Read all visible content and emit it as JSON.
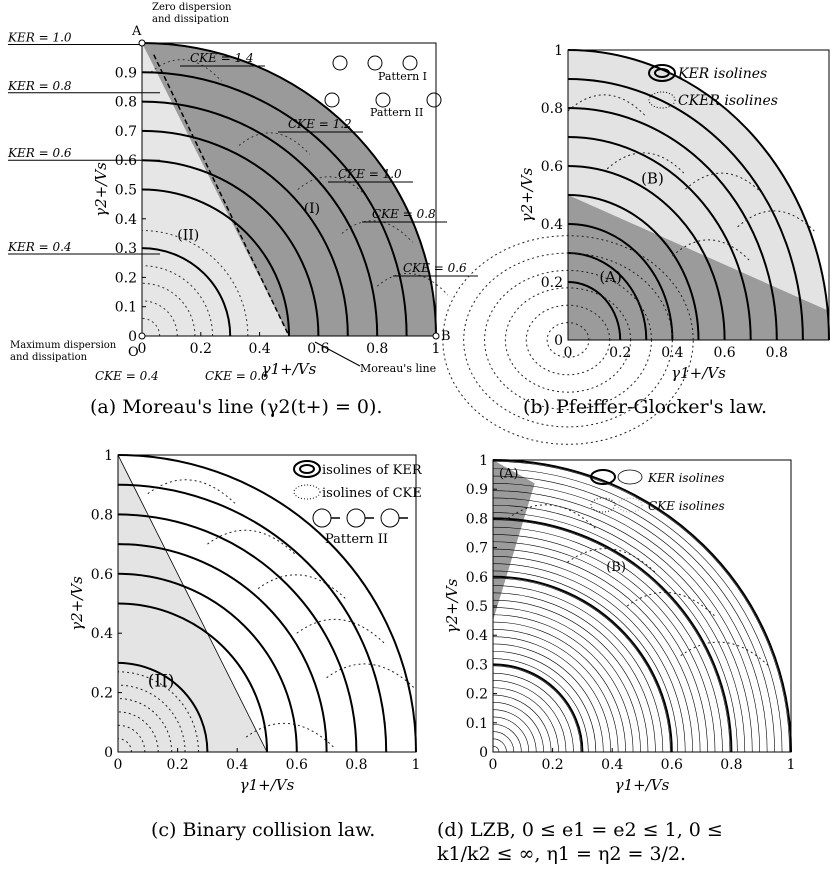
{
  "chart_data": [
    {
      "id": "a",
      "type": "contour",
      "caption": "(a) Moreau's line (γ2(t+) = 0).",
      "xlabel": "γ1+/Vs",
      "ylabel": "γ2+/Vs",
      "xlim": [
        0,
        1
      ],
      "ylim": [
        0,
        1
      ],
      "xticks": [
        "0",
        "0.2",
        "0.4",
        "0.6",
        "0.8",
        "1"
      ],
      "yticks": [
        "0",
        "0.1",
        "0.2",
        "0.3",
        "0.4",
        "0.5",
        "0.6",
        "0.7",
        "0.8",
        "0.9"
      ],
      "ker_isolines": [
        0.4,
        0.6,
        0.8,
        1.0
      ],
      "ker_labels": [
        "KER = 1.0",
        "KER = 0.8",
        "KER = 0.6",
        "KER = 0.4"
      ],
      "cke_labels": [
        "CKE = 1.4",
        "CKE = 1.2",
        "CKE = 1.0",
        "CKE = 0.8",
        "CKE = 0.6",
        "CKE = 0.4",
        "CKE = 0.6"
      ],
      "regions": [
        "(I)",
        "(II)"
      ],
      "boundary": {
        "from": [
          0.06,
          0.93
        ],
        "to": [
          0.5,
          0.0
        ],
        "label": "Moreau's line"
      },
      "point_a": {
        "label": "A",
        "x": 0,
        "y": 1,
        "note": "Zero dispersion and dissipation"
      },
      "point_o": {
        "label": "O",
        "x": 0,
        "y": 0,
        "note": "Maximum dispersion and dissipation"
      },
      "point_b": {
        "label": "B",
        "x": 1,
        "y": 0
      },
      "legend": {
        "pattern1": "Pattern I",
        "pattern2": "Pattern II"
      }
    },
    {
      "id": "b",
      "type": "contour",
      "caption": "(b) Pfeiffer-Glocker's law.",
      "xlabel": "γ1+/Vs",
      "ylabel": "γ2+/Vs",
      "xlim": [
        0,
        1
      ],
      "ylim": [
        0,
        1
      ],
      "xticks": [
        "0",
        "0.2",
        "0.4",
        "0.6",
        "0.8"
      ],
      "yticks": [
        "0",
        "0.2",
        "0.4",
        "0.6",
        "0.8",
        "1"
      ],
      "ker_isolines": [
        0.2,
        0.3,
        0.4,
        0.5,
        0.6,
        0.7,
        0.8,
        0.9,
        1.0
      ],
      "regions": [
        "(A)",
        "(B)"
      ],
      "boundary": {
        "from": [
          0,
          0.5
        ],
        "to": [
          1,
          0.1
        ]
      },
      "legend": [
        "KER isolines",
        "CKER isolines"
      ]
    },
    {
      "id": "c",
      "type": "contour",
      "caption": "(c) Binary collision law.",
      "xlabel": "γ1+/Vs",
      "ylabel": "γ2+/Vs",
      "xlim": [
        0,
        1
      ],
      "ylim": [
        0,
        1
      ],
      "xticks": [
        "0",
        "0.2",
        "0.4",
        "0.6",
        "0.8",
        "1"
      ],
      "yticks": [
        "0",
        "0.2",
        "0.4",
        "0.6",
        "0.8",
        "1"
      ],
      "ker_isolines": [
        0.3,
        0.5,
        0.6,
        0.7,
        0.8,
        0.9,
        1.0
      ],
      "regions": [
        "(II)"
      ],
      "boundary": {
        "from": [
          0,
          1
        ],
        "to": [
          0.5,
          0
        ]
      },
      "legend": [
        "isolines of KER",
        "isolines of CKE",
        "Pattern II"
      ]
    },
    {
      "id": "d",
      "type": "contour",
      "caption_line1": "(d) LZB, 0 ≤ e1 = e2 ≤ 1, 0 ≤",
      "caption_line2": "k1/k2 ≤ ∞, η1 = η2 = 3/2.",
      "xlabel": "γ1+/Vs",
      "ylabel": "γ2+/Vs",
      "xlim": [
        0,
        1
      ],
      "ylim": [
        0,
        1
      ],
      "xticks": [
        "0",
        "0.2",
        "0.4",
        "0.6",
        "0.8",
        "1"
      ],
      "yticks": [
        "0",
        "0.1",
        "0.2",
        "0.3",
        "0.4",
        "0.5",
        "0.6",
        "0.7",
        "0.8",
        "0.9",
        "1"
      ],
      "ker_isolines_bold": [
        0.3,
        0.6,
        0.8,
        1.0
      ],
      "regions": [
        "(A)",
        "(B)"
      ],
      "boundary": {
        "from": [
          0,
          1
        ],
        "to": [
          0.14,
          0.92
        ]
      },
      "legend": [
        "KER isolines",
        "CKE isolines"
      ]
    }
  ]
}
